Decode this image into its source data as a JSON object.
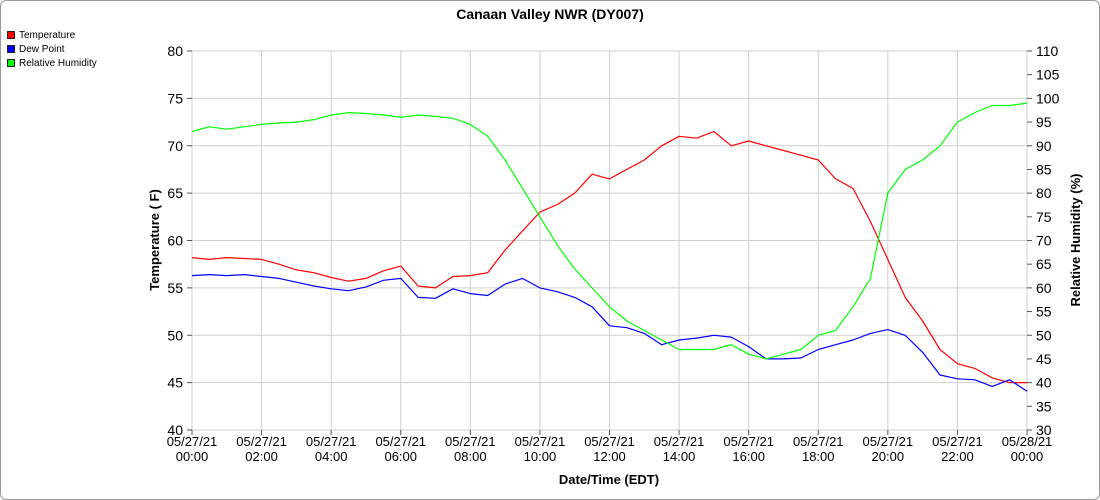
{
  "chart_data": {
    "type": "line",
    "title": "Canaan Valley NWR (DY007)",
    "xlabel": "Date/Time (EDT)",
    "ylabel_left": "Temperature ( F)",
    "ylabel_right": "Relative Humidity (%)",
    "ylim_left": [
      40,
      80
    ],
    "ylim_right": [
      30,
      110
    ],
    "yticks_left": [
      "40",
      "45",
      "50",
      "55",
      "60",
      "65",
      "70",
      "75",
      "80"
    ],
    "yticks_right": [
      "30",
      "35",
      "40",
      "45",
      "50",
      "55",
      "60",
      "65",
      "70",
      "75",
      "80",
      "85",
      "90",
      "95",
      "100",
      "105",
      "110"
    ],
    "xlim_hours": [
      0,
      24
    ],
    "xticks": [
      {
        "date": "05/27/21",
        "time": "00:00"
      },
      {
        "date": "05/27/21",
        "time": "02:00"
      },
      {
        "date": "05/27/21",
        "time": "04:00"
      },
      {
        "date": "05/27/21",
        "time": "06:00"
      },
      {
        "date": "05/27/21",
        "time": "08:00"
      },
      {
        "date": "05/27/21",
        "time": "10:00"
      },
      {
        "date": "05/27/21",
        "time": "12:00"
      },
      {
        "date": "05/27/21",
        "time": "14:00"
      },
      {
        "date": "05/27/21",
        "time": "16:00"
      },
      {
        "date": "05/27/21",
        "time": "18:00"
      },
      {
        "date": "05/27/21",
        "time": "20:00"
      },
      {
        "date": "05/27/21",
        "time": "22:00"
      },
      {
        "date": "05/28/21",
        "time": "00:00"
      }
    ],
    "grid": true,
    "legend_position": "top-left",
    "series": [
      {
        "name": "Temperature",
        "axis": "left",
        "color": "#ff0000",
        "x": [
          0,
          0.5,
          1,
          1.5,
          2,
          2.5,
          3,
          3.5,
          4,
          4.5,
          5,
          5.5,
          6,
          6.5,
          7,
          7.5,
          8,
          8.5,
          9,
          9.5,
          10,
          10.5,
          11,
          11.5,
          12,
          12.5,
          13,
          13.5,
          14,
          14.5,
          15,
          15.5,
          16,
          16.5,
          17,
          17.5,
          18,
          18.5,
          19,
          19.5,
          20,
          20.5,
          21,
          21.5,
          22,
          22.5,
          23,
          23.5,
          24
        ],
        "values": [
          58.2,
          58.0,
          58.2,
          58.1,
          58.0,
          57.5,
          56.9,
          56.6,
          56.1,
          55.7,
          56.0,
          56.8,
          57.3,
          55.2,
          55.0,
          56.2,
          56.3,
          56.6,
          59.0,
          61.0,
          63.0,
          63.8,
          65.0,
          67.0,
          66.5,
          67.5,
          68.5,
          70.0,
          71.0,
          70.8,
          71.5,
          70.0,
          70.5,
          70.0,
          69.5,
          69.0,
          68.5,
          66.5,
          65.5,
          62.0,
          58.0,
          54.0,
          51.5,
          48.5,
          47.0,
          46.5,
          45.5,
          45.0,
          45.0
        ]
      },
      {
        "name": "Dew Point",
        "axis": "left",
        "color": "#0000ff",
        "x": [
          0,
          0.5,
          1,
          1.5,
          2,
          2.5,
          3,
          3.5,
          4,
          4.5,
          5,
          5.5,
          6,
          6.5,
          7,
          7.5,
          8,
          8.5,
          9,
          9.5,
          10,
          10.5,
          11,
          11.5,
          12,
          12.5,
          13,
          13.5,
          14,
          14.5,
          15,
          15.5,
          16,
          16.5,
          17,
          17.5,
          18,
          18.5,
          19,
          19.5,
          20,
          20.5,
          21,
          21.5,
          22,
          22.5,
          23,
          23.5,
          24
        ],
        "values": [
          56.3,
          56.4,
          56.3,
          56.4,
          56.2,
          56.0,
          55.6,
          55.2,
          54.9,
          54.7,
          55.1,
          55.8,
          56.0,
          54.0,
          53.9,
          54.9,
          54.4,
          54.2,
          55.4,
          56.0,
          55.0,
          54.6,
          54.0,
          53.0,
          51.0,
          50.8,
          50.2,
          49.0,
          49.5,
          49.7,
          50.0,
          49.8,
          48.8,
          47.5,
          47.5,
          47.6,
          48.5,
          49.0,
          49.5,
          50.2,
          50.6,
          50.0,
          48.2,
          45.8,
          45.4,
          45.3,
          44.6,
          45.3,
          44.1
        ]
      },
      {
        "name": "Relative Humidity",
        "axis": "right",
        "color": "#00ff00",
        "x": [
          0,
          0.5,
          1,
          1.5,
          2,
          2.5,
          3,
          3.5,
          4,
          4.5,
          5,
          5.5,
          6,
          6.5,
          7,
          7.5,
          8,
          8.5,
          9,
          9.5,
          10,
          10.5,
          11,
          11.5,
          12,
          12.5,
          13,
          13.5,
          14,
          14.5,
          15,
          15.5,
          16,
          16.5,
          17,
          17.5,
          18,
          18.5,
          19,
          19.5,
          20,
          20.5,
          21,
          21.5,
          22,
          22.5,
          23,
          23.5,
          24
        ],
        "values": [
          93,
          94,
          93.5,
          94,
          94.5,
          94.8,
          95,
          95.5,
          96.5,
          97,
          96.8,
          96.5,
          96,
          96.5,
          96.2,
          95.8,
          94.5,
          92,
          87,
          81,
          75,
          69,
          64,
          60,
          56,
          53,
          51,
          49,
          47,
          47,
          47,
          48,
          46,
          45,
          46,
          47,
          50,
          51,
          56,
          62,
          80,
          85,
          87,
          90,
          95,
          97,
          98.5,
          98.5,
          99
        ]
      }
    ]
  }
}
